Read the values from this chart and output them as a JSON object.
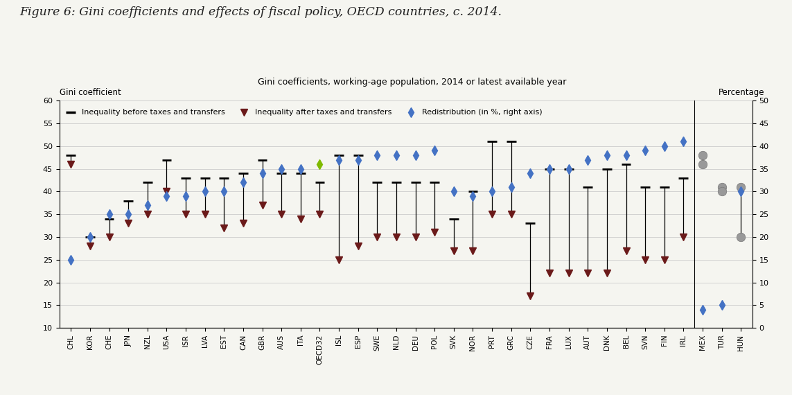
{
  "title": "Figure 6: Gini coefficients and effects of fiscal policy, OECD countries, c. 2014.",
  "subtitle": "Gini coefficients, working-age population, 2014 or latest available year",
  "ylabel_left": "Gini coefficient",
  "ylabel_right": "Percentage",
  "countries": [
    "CHL",
    "KOR",
    "CHE",
    "JPN",
    "NZL",
    "USA",
    "ISR",
    "LVA",
    "EST",
    "CAN",
    "GBR",
    "AUS",
    "ITA",
    "OECD32",
    "ISL",
    "ESP",
    "SWE",
    "NLD",
    "DEU",
    "POL",
    "SVK",
    "NOR",
    "PRT",
    "GRC",
    "CZE",
    "FRA",
    "LUX",
    "AUT",
    "DNK",
    "BEL",
    "SVN",
    "FIN",
    "IRL",
    "MEX",
    "TUR",
    "HUN"
  ],
  "before_taxes": [
    48,
    30,
    34,
    38,
    42,
    47,
    43,
    43,
    43,
    44,
    47,
    44,
    44,
    42,
    48,
    48,
    42,
    42,
    42,
    42,
    34,
    40,
    51,
    51,
    33,
    45,
    45,
    41,
    45,
    46,
    41,
    41,
    43,
    48,
    41,
    41
  ],
  "after_taxes": [
    46,
    28,
    30,
    33,
    35,
    40,
    35,
    35,
    32,
    33,
    37,
    35,
    34,
    35,
    25,
    28,
    30,
    30,
    30,
    31,
    27,
    27,
    35,
    35,
    17,
    22,
    22,
    22,
    22,
    27,
    25,
    25,
    30,
    46,
    40,
    30
  ],
  "redistribution": [
    15,
    20,
    25,
    25,
    27,
    29,
    29,
    30,
    30,
    32,
    34,
    35,
    35,
    36,
    37,
    37,
    38,
    38,
    38,
    39,
    30,
    29,
    30,
    31,
    34,
    35,
    35,
    37,
    38,
    38,
    39,
    40,
    41,
    4,
    5,
    30
  ],
  "oecd32_color": "#7fba00",
  "dark_red": "#6B1A1A",
  "blue_diamond": "#4472C4",
  "gray_color": "#999999",
  "background_color": "#f5f5f0",
  "ylim_left": [
    10,
    60
  ],
  "ylim_right": [
    0,
    50
  ],
  "yticks_left": [
    10,
    15,
    20,
    25,
    30,
    35,
    40,
    45,
    50,
    55,
    60
  ],
  "yticks_right": [
    0,
    5,
    10,
    15,
    20,
    25,
    30,
    35,
    40,
    45,
    50
  ]
}
